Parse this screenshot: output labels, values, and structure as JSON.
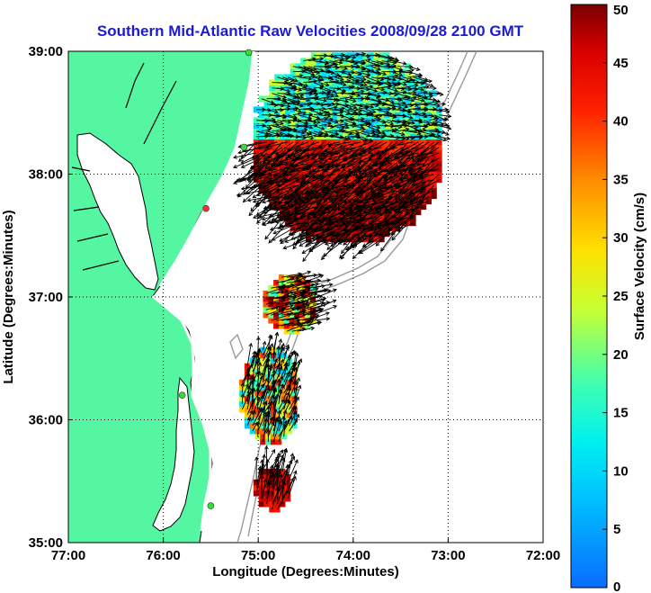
{
  "chart_data": {
    "type": "heatmap",
    "title": "Southern Mid-Atlantic Raw Velocities 2008/09/28 2100 GMT",
    "xlabel": "Longitude (Degrees:Minutes)",
    "ylabel": "Latitude (Degrees:Minutes)",
    "x_ticks": [
      "77:00",
      "76:00",
      "75:00",
      "74:00",
      "73:00",
      "72:00"
    ],
    "y_ticks": [
      "39:00",
      "38:00",
      "37:00",
      "36:00",
      "35:00"
    ],
    "xlim": [
      -77,
      -72
    ],
    "ylim": [
      35,
      39
    ],
    "grid": true,
    "colorbar": {
      "label": "Surface Velocity (cm/s)",
      "range": [
        0,
        50
      ],
      "ticks": [
        "50",
        "45",
        "40",
        "35",
        "30",
        "25",
        "20",
        "15",
        "10",
        "5",
        "0"
      ],
      "colormap": "jet"
    },
    "regions": [
      {
        "lon_range": [
          -75.05,
          -73.1
        ],
        "lat_range": [
          37.45,
          38.95
        ],
        "velocity_north": [
          8,
          25
        ],
        "velocity_south": [
          35,
          50
        ]
      },
      {
        "lon_range": [
          -74.95,
          -74.4
        ],
        "lat_range": [
          36.7,
          37.15
        ],
        "velocity_range": [
          15,
          50
        ]
      },
      {
        "lon_range": [
          -75.2,
          -74.6
        ],
        "lat_range": [
          35.8,
          36.55
        ],
        "velocity_range": [
          8,
          45
        ]
      },
      {
        "lon_range": [
          -75.05,
          -74.7
        ],
        "lat_range": [
          35.25,
          35.6
        ],
        "velocity_range": [
          40,
          50
        ]
      }
    ],
    "stations": [
      {
        "lon": -75.1,
        "lat": 38.99,
        "color": "#33dd33"
      },
      {
        "lon": -75.15,
        "lat": 38.22,
        "color": "#33dd33"
      },
      {
        "lon": -75.55,
        "lat": 37.72,
        "color": "#ee3333"
      },
      {
        "lon": -75.8,
        "lat": 36.2,
        "color": "#33dd33"
      },
      {
        "lon": -75.5,
        "lat": 35.3,
        "color": "#33dd33"
      }
    ]
  },
  "colors": {
    "land": "#55f6a2",
    "coast": "#000000",
    "bathymetry": "#999999",
    "title": "#1a1adb"
  }
}
